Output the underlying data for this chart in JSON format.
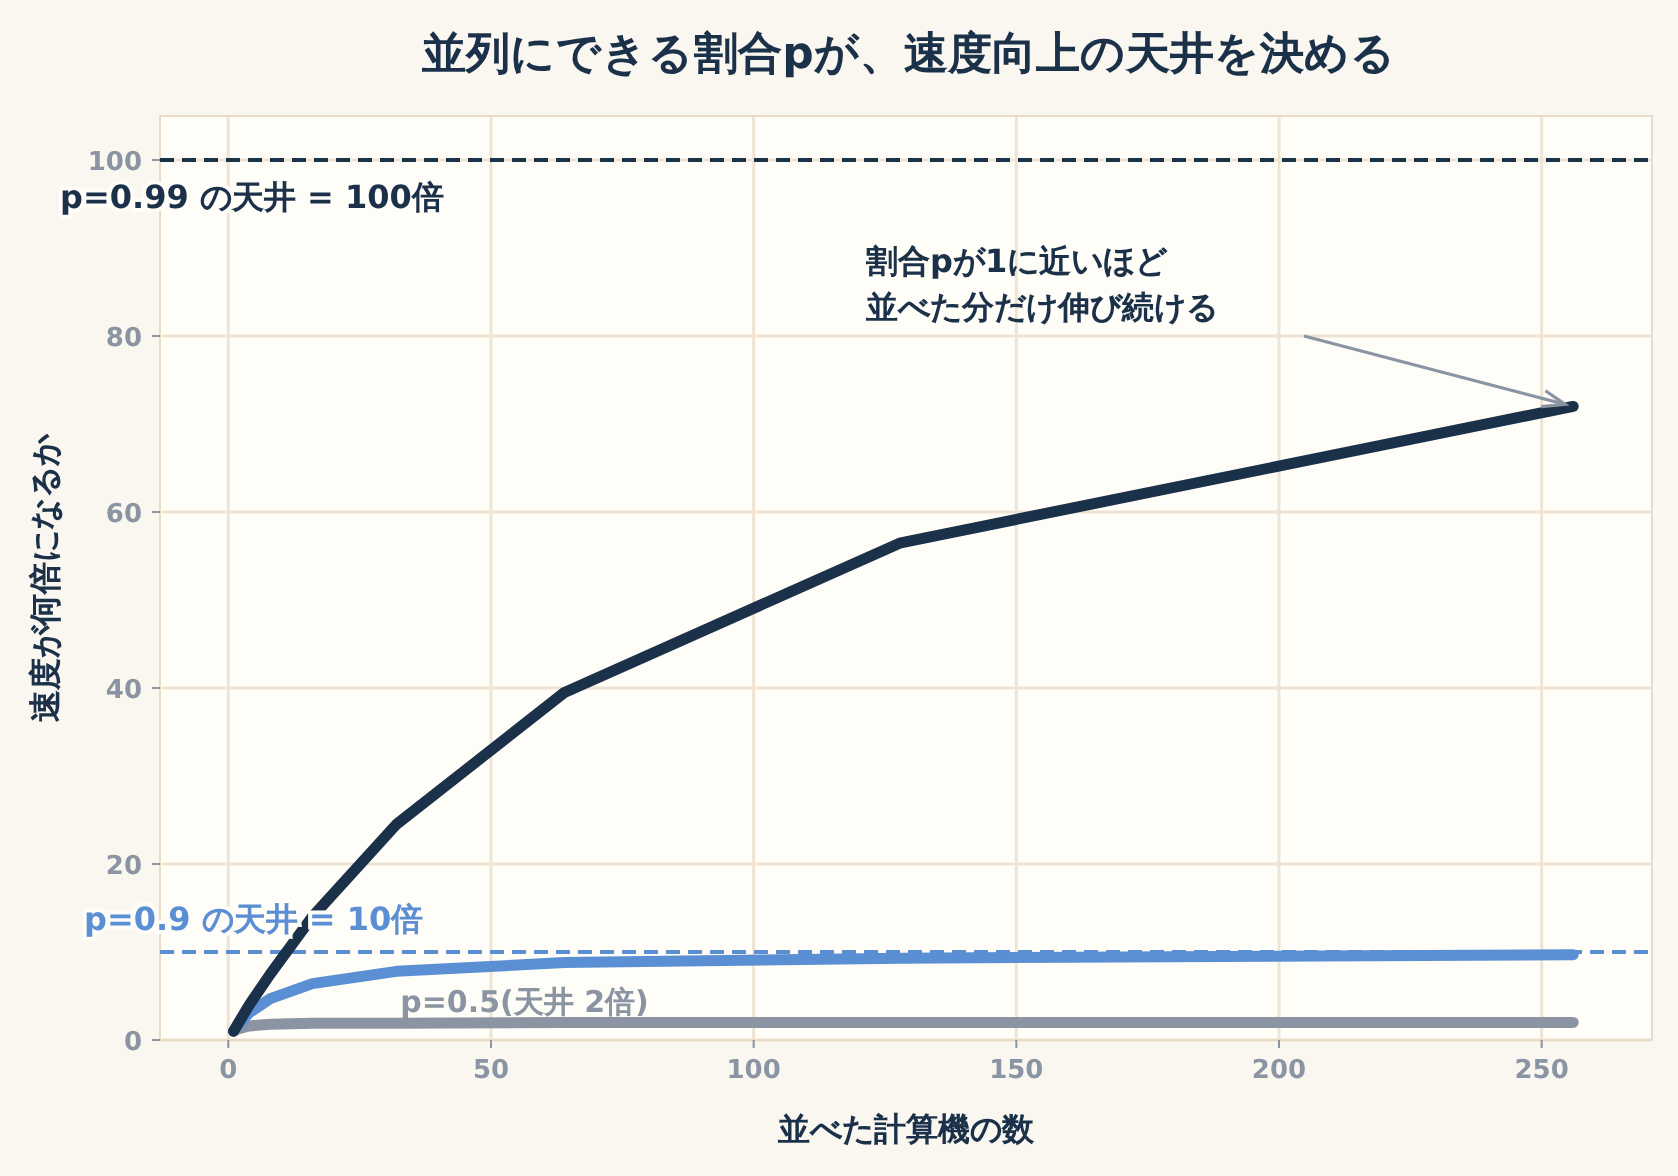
{
  "chart_data": {
    "type": "line",
    "title": "並列にできる割合pが、速度向上の天井を決める",
    "xlabel": "並べた計算機の数",
    "ylabel": "速度が何倍になるか",
    "x": [
      1,
      2,
      4,
      8,
      16,
      32,
      64,
      128,
      256
    ],
    "series": [
      {
        "color": "#1b3049",
        "values": [
          1,
          2,
          4,
          7.5,
          14,
          24.5,
          39.5,
          56.5,
          72
        ]
      },
      {
        "color": "#5b8fd4",
        "values": [
          1,
          1.8,
          3.1,
          4.7,
          6.4,
          7.8,
          8.8,
          9.3,
          9.7
        ]
      },
      {
        "name": "p=0.5(天井 2倍)",
        "color": "#8a94a3",
        "values": [
          1,
          1.3,
          1.6,
          1.8,
          1.9,
          1.9,
          2,
          2,
          2
        ]
      }
    ],
    "xlim": [
      -13,
      271
    ],
    "ylim": [
      0,
      105
    ],
    "xticks": [
      0,
      50,
      100,
      150,
      200,
      250
    ],
    "yticks": [
      0,
      20,
      40,
      60,
      80,
      100
    ],
    "grid": true,
    "marker": "none",
    "line_style": "solid",
    "ref_lines": [
      {
        "axis": "y",
        "value": 100,
        "label": "p=0.99 の天井 = 100倍",
        "color": "#1b3049",
        "line_style": "dashed"
      },
      {
        "axis": "y",
        "value": 10,
        "label": "p=0.9 の天井 = 10倍",
        "color": "#5b8fd4",
        "line_style": "dashed"
      }
    ],
    "annotations": [
      "割合pが1に近いほど並べた分だけ伸び続ける"
    ]
  }
}
